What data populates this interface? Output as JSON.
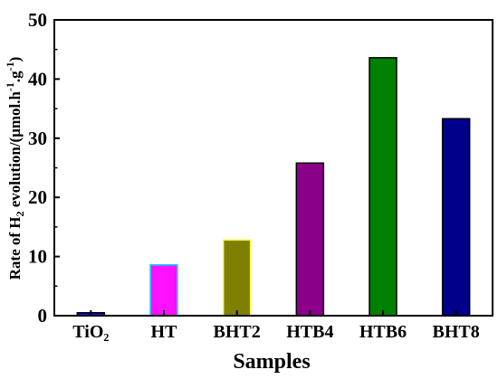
{
  "chart_data": {
    "type": "bar",
    "categories": [
      "TiO₂",
      "HT",
      "BHT2",
      "HTB4",
      "HTB6",
      "BHT8"
    ],
    "values": [
      0.5,
      8.6,
      12.8,
      25.8,
      43.6,
      33.3
    ],
    "bar_colors": [
      "#1010e0",
      "#ff10ff",
      "#808000",
      "#8b008b",
      "#008000",
      "#00008b"
    ],
    "bar_edge_colors": [
      "#000000",
      "#00e0ff",
      "#ffff40",
      "#000000",
      "#000000",
      "#000000"
    ],
    "xlabel": "Samples",
    "ylabel_parts": {
      "pre": "Rate of H",
      "sub": "2",
      "mid": " evolution/(μmol.h",
      "sup1": "-1",
      "dot": ".g",
      "sup2": "-1",
      "post": ")"
    },
    "ylim": [
      0,
      50
    ],
    "yticks": [
      "0",
      "10",
      "20",
      "30",
      "40",
      "50"
    ],
    "grid": false,
    "legend": "none"
  }
}
